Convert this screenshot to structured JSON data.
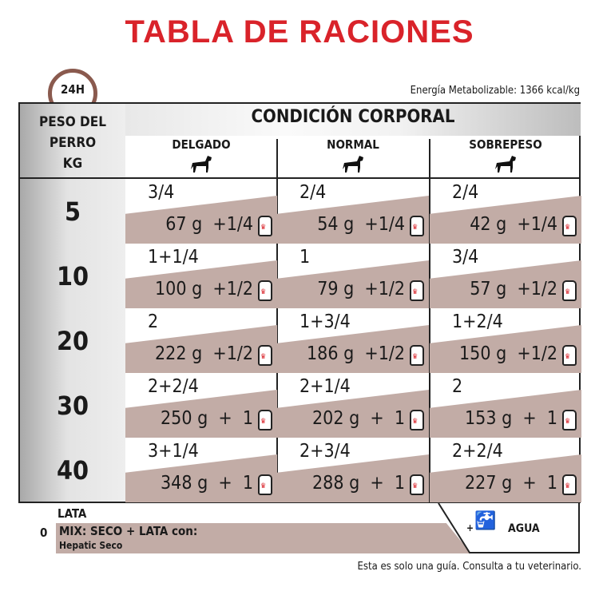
{
  "title": "TABLA DE RACIONES",
  "clock_label": "24H",
  "energy": "Energía Metabolizable: 1366 kcal/kg",
  "header": {
    "weight_label": [
      "PESO DEL",
      "PERRO",
      "KG"
    ],
    "condition_label": "CONDICIÓN CORPORAL",
    "columns": [
      "DELGADO",
      "NORMAL",
      "SOBREPESO"
    ]
  },
  "rows": [
    {
      "kg": "5",
      "cells": [
        {
          "dry": "3/4",
          "wet": "67 g  +1/4"
        },
        {
          "dry": "2/4",
          "wet": "54 g  +1/4"
        },
        {
          "dry": "2/4",
          "wet": "42 g  +1/4"
        }
      ]
    },
    {
      "kg": "10",
      "cells": [
        {
          "dry": "1+1/4",
          "wet": "100 g  +1/2"
        },
        {
          "dry": "1",
          "wet": "79 g  +1/2"
        },
        {
          "dry": "3/4",
          "wet": "57 g  +1/2"
        }
      ]
    },
    {
      "kg": "20",
      "cells": [
        {
          "dry": "2",
          "wet": "222 g  +1/2"
        },
        {
          "dry": "1+3/4",
          "wet": "186 g  +1/2"
        },
        {
          "dry": "1+2/4",
          "wet": "150 g  +1/2"
        }
      ]
    },
    {
      "kg": "30",
      "cells": [
        {
          "dry": "2+2/4",
          "wet": "250 g  +  1"
        },
        {
          "dry": "2+1/4",
          "wet": "202 g  +  1"
        },
        {
          "dry": "2",
          "wet": "153 g  +  1"
        }
      ]
    },
    {
      "kg": "40",
      "cells": [
        {
          "dry": "3+1/4",
          "wet": "348 g  +  1"
        },
        {
          "dry": "2+3/4",
          "wet": "288 g  +  1"
        },
        {
          "dry": "2+2/4",
          "wet": "227 g  +  1"
        }
      ]
    }
  ],
  "legend": {
    "lata": "LATA",
    "zero": "0",
    "mix": "MIX: SECO + LATA con:",
    "mix_sub": "Hepatic Seco",
    "water": "AGUA",
    "water_plus": "+"
  },
  "footer": "Esta es solo una guía. Consulta a tu veterinario.",
  "colors": {
    "title": "#d9232a",
    "band": "#c2aca6",
    "clock": "#8a5a4e"
  }
}
